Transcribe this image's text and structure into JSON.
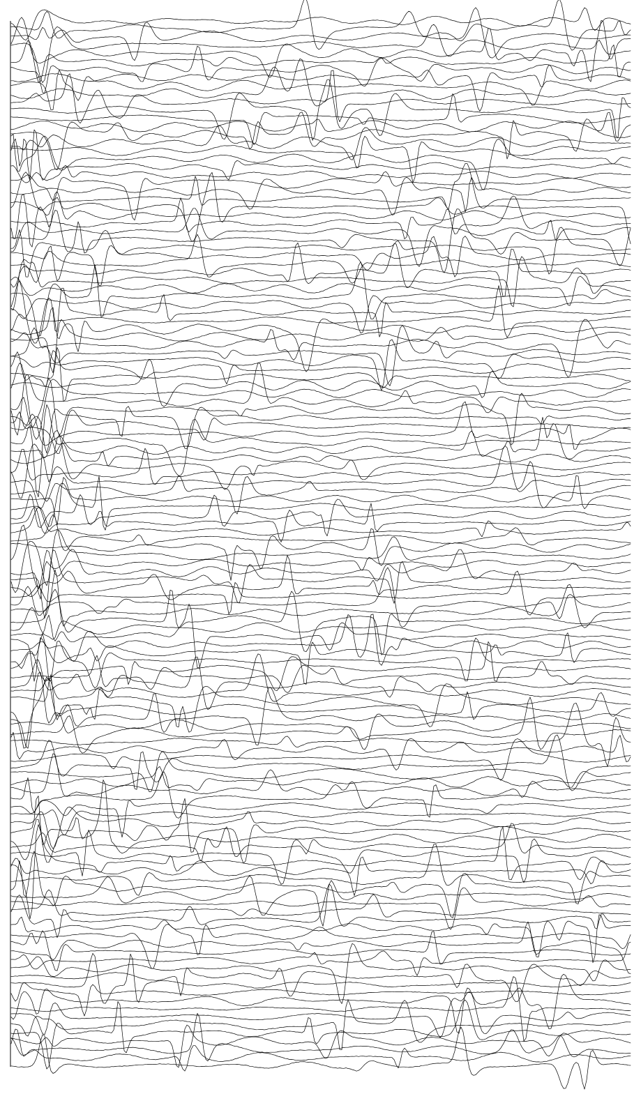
{
  "chart_data": {
    "type": "line",
    "title": "",
    "xlabel": "",
    "ylabel": "",
    "grid": false,
    "legend": "none",
    "axis": "left-vertical-line-only",
    "trace_count": 130,
    "xlim": [
      0,
      1
    ],
    "spike_amplitude_range": [
      8,
      60
    ],
    "line_color": "#000000",
    "background_color": "#ffffff"
  }
}
